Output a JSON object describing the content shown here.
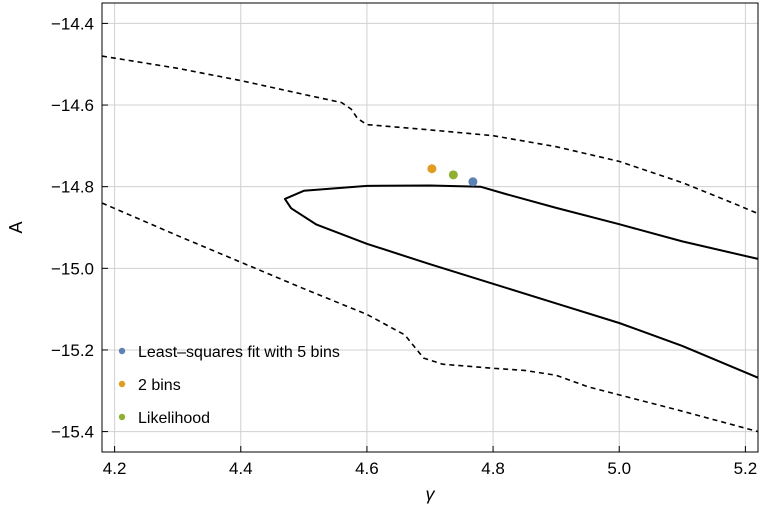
{
  "chart_data": {
    "type": "scatter",
    "title": "",
    "xlabel": "γ",
    "ylabel": "A",
    "xlim": [
      4.18,
      5.22
    ],
    "ylim": [
      -15.45,
      -14.35
    ],
    "x_ticks": [
      {
        "value": 4.2,
        "label": "4.2"
      },
      {
        "value": 4.4,
        "label": "4.4"
      },
      {
        "value": 4.6,
        "label": "4.6"
      },
      {
        "value": 4.8,
        "label": "4.8"
      },
      {
        "value": 5.0,
        "label": "5.0"
      },
      {
        "value": 5.2,
        "label": "5.2"
      }
    ],
    "y_ticks": [
      {
        "value": -14.4,
        "label": "−14.4"
      },
      {
        "value": -14.6,
        "label": "−14.6"
      },
      {
        "value": -14.8,
        "label": "−14.8"
      },
      {
        "value": -15.0,
        "label": "−15.0"
      },
      {
        "value": -15.2,
        "label": "−15.2"
      },
      {
        "value": -15.4,
        "label": "−15.4"
      }
    ],
    "grid": true,
    "legend_position": "bottom-left",
    "series": [
      {
        "name": "Least–squares fit with 5 bins",
        "color": "#5e81b5",
        "points": [
          [
            4.768,
            -14.788
          ]
        ]
      },
      {
        "name": "2 bins",
        "color": "#e19c24",
        "points": [
          [
            4.703,
            -14.756
          ]
        ]
      },
      {
        "name": "Likelihood",
        "color": "#8fb032",
        "points": [
          [
            4.737,
            -14.771
          ]
        ]
      }
    ],
    "contours": [
      {
        "style": "solid",
        "points": [
          [
            5.22,
            -14.977
          ],
          [
            5.1,
            -14.934
          ],
          [
            5.0,
            -14.892
          ],
          [
            4.9,
            -14.852
          ],
          [
            4.82,
            -14.818
          ],
          [
            4.78,
            -14.8
          ],
          [
            4.7,
            -14.797
          ],
          [
            4.6,
            -14.798
          ],
          [
            4.5,
            -14.81
          ],
          [
            4.47,
            -14.83
          ],
          [
            4.48,
            -14.853
          ],
          [
            4.52,
            -14.893
          ],
          [
            4.6,
            -14.94
          ],
          [
            4.7,
            -14.99
          ],
          [
            4.8,
            -15.038
          ],
          [
            4.9,
            -15.086
          ],
          [
            5.0,
            -15.134
          ],
          [
            5.1,
            -15.19
          ],
          [
            5.22,
            -15.268
          ]
        ]
      },
      {
        "style": "dashed",
        "points": [
          [
            4.18,
            -14.48
          ],
          [
            4.3,
            -14.51
          ],
          [
            4.4,
            -14.54
          ],
          [
            4.5,
            -14.574
          ],
          [
            4.56,
            -14.594
          ],
          [
            4.575,
            -14.61
          ],
          [
            4.585,
            -14.633
          ],
          [
            4.6,
            -14.648
          ],
          [
            4.7,
            -14.661
          ],
          [
            4.8,
            -14.675
          ],
          [
            4.9,
            -14.702
          ],
          [
            5.0,
            -14.738
          ],
          [
            5.1,
            -14.79
          ],
          [
            5.18,
            -14.84
          ],
          [
            5.22,
            -14.866
          ]
        ]
      },
      {
        "style": "dashed",
        "points": [
          [
            4.18,
            -14.84
          ],
          [
            4.3,
            -14.92
          ],
          [
            4.4,
            -14.985
          ],
          [
            4.5,
            -15.05
          ],
          [
            4.6,
            -15.113
          ],
          [
            4.66,
            -15.163
          ],
          [
            4.69,
            -15.22
          ],
          [
            4.72,
            -15.235
          ],
          [
            4.8,
            -15.245
          ],
          [
            4.85,
            -15.25
          ],
          [
            4.9,
            -15.262
          ],
          [
            4.95,
            -15.29
          ],
          [
            5.0,
            -15.31
          ],
          [
            5.1,
            -15.35
          ],
          [
            5.22,
            -15.4
          ]
        ]
      }
    ]
  }
}
